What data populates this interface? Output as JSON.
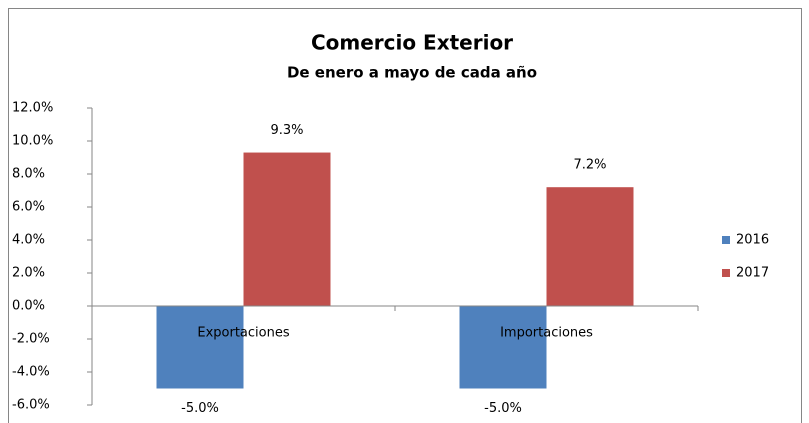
{
  "chart_data": {
    "type": "bar",
    "title": "Comercio Exterior",
    "subtitle": "De enero a mayo de cada año",
    "categories": [
      "Exportaciones",
      "Importaciones"
    ],
    "series": [
      {
        "name": "2016",
        "color": "#4f81bd",
        "values": [
          -5.0,
          -5.0
        ],
        "value_labels": [
          "-5.0%",
          "-5.0%"
        ]
      },
      {
        "name": "2017",
        "color": "#c0504d",
        "values": [
          9.3,
          7.2
        ],
        "value_labels": [
          "9.3%",
          "7.2%"
        ]
      }
    ],
    "ylim": [
      -6,
      12
    ],
    "yticks": [
      {
        "value": -6,
        "label": "-6.0%"
      },
      {
        "value": -4,
        "label": "-4.0%"
      },
      {
        "value": -2,
        "label": "-2.0%"
      },
      {
        "value": 0,
        "label": "0.0%"
      },
      {
        "value": 2,
        "label": "2.0%"
      },
      {
        "value": 4,
        "label": "4.0%"
      },
      {
        "value": 6,
        "label": "6.0%"
      },
      {
        "value": 8,
        "label": "8.0%"
      },
      {
        "value": 10,
        "label": "10.0%"
      },
      {
        "value": 12,
        "label": "12.0%"
      }
    ],
    "grid": false,
    "legend": "right"
  }
}
